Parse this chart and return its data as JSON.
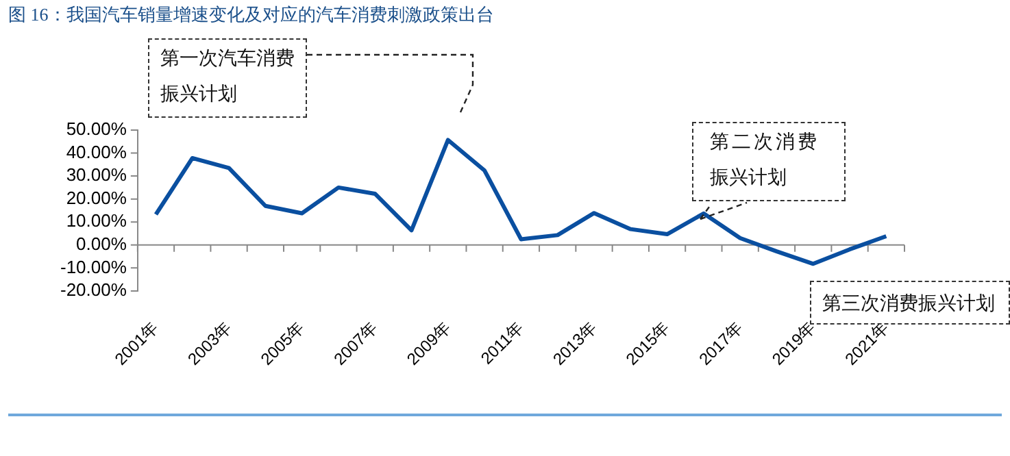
{
  "chart_data": {
    "type": "line",
    "title": "图 16：我国汽车销量增速变化及对应的汽车消费刺激政策出台",
    "categories": [
      "2001年",
      null,
      "2003年",
      null,
      "2005年",
      null,
      "2007年",
      null,
      "2009年",
      null,
      "2011年",
      null,
      "2013年",
      null,
      "2015年",
      null,
      "2017年",
      null,
      "2019年",
      null,
      "2021年"
    ],
    "series": [
      {
        "color": "#0a4fa0",
        "values": [
          13.3,
          37.8,
          33.5,
          17,
          13.8,
          25,
          22.3,
          6.4,
          45.7,
          32.4,
          2.5,
          4.3,
          13.9,
          6.9,
          4.7,
          13.7,
          3,
          -2.8,
          -8.2,
          -1.9,
          3.8
        ]
      }
    ],
    "ylim": [
      -20,
      50
    ],
    "yticks": [
      {
        "value": -20,
        "label": "-20.00%"
      },
      {
        "value": -10,
        "label": "-10.00%"
      },
      {
        "value": 0,
        "label": "0.00%"
      },
      {
        "value": 10,
        "label": "10.00%"
      },
      {
        "value": 20,
        "label": "20.00%"
      },
      {
        "value": 30,
        "label": "30.00%"
      },
      {
        "value": 40,
        "label": "40.00%"
      },
      {
        "value": 50,
        "label": "50.00%"
      }
    ],
    "legend": false,
    "marker": "none",
    "line_style": "solid",
    "annotations": [
      "第一次汽车消费振兴计划",
      "第二次消费振兴计划",
      "第三次消费振兴计划"
    ]
  }
}
